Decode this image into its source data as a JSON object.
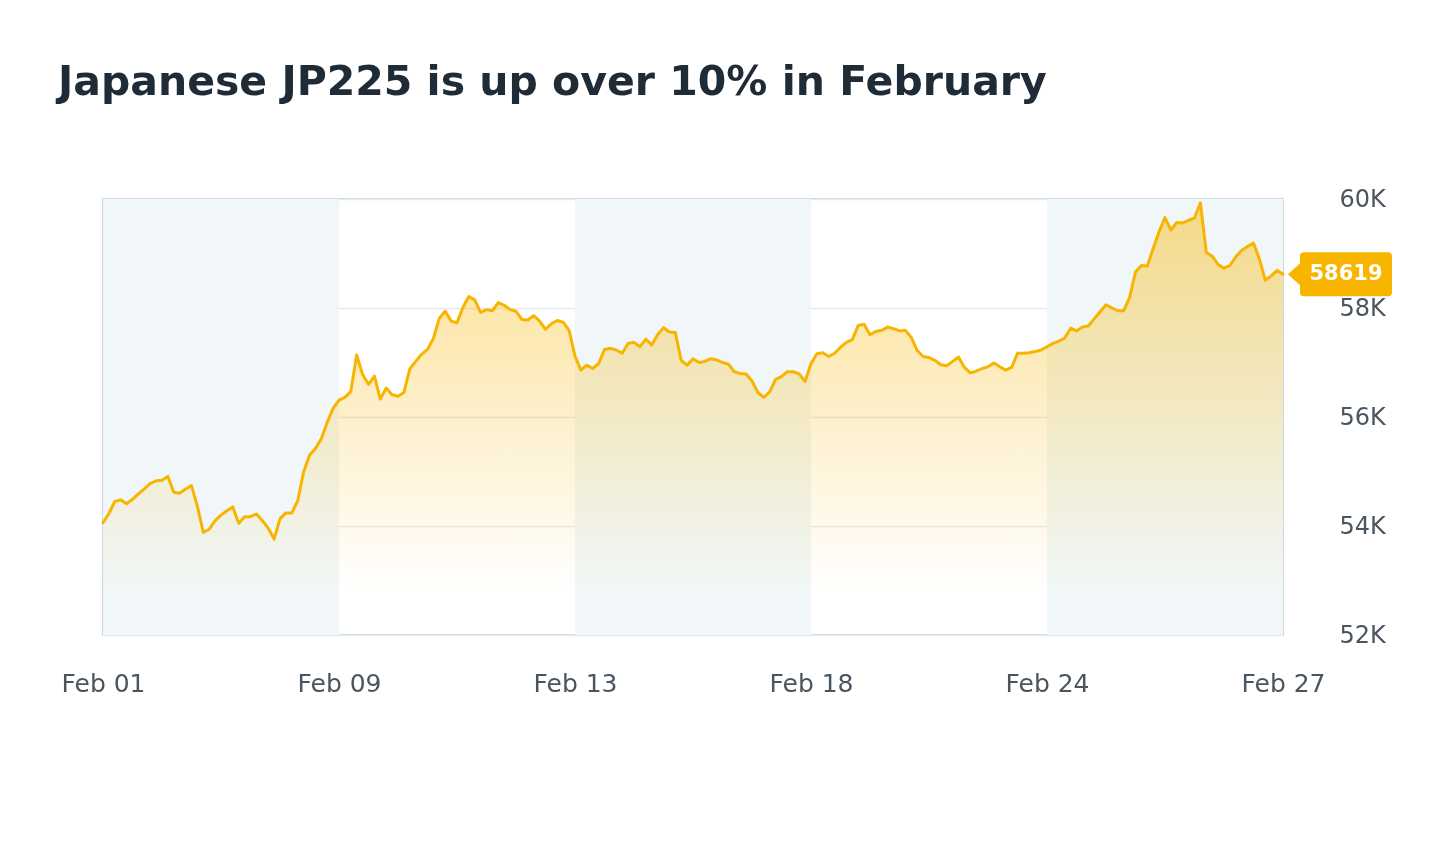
{
  "chart_data": {
    "type": "area",
    "title": "Japanese JP225 is up over 10% in February",
    "categories": [
      "Feb 01",
      null,
      null,
      null,
      null,
      null,
      null,
      null,
      null,
      null,
      null,
      null,
      null,
      null,
      null,
      null,
      null,
      null,
      null,
      null,
      null,
      null,
      null,
      null,
      null,
      null,
      null,
      null,
      null,
      null,
      null,
      null,
      null,
      null,
      null,
      null,
      null,
      null,
      null,
      null,
      "Feb 09",
      null,
      null,
      null,
      null,
      null,
      null,
      null,
      null,
      null,
      null,
      null,
      null,
      null,
      null,
      null,
      null,
      null,
      null,
      null,
      null,
      null,
      null,
      null,
      null,
      null,
      null,
      null,
      null,
      null,
      null,
      null,
      null,
      null,
      null,
      null,
      null,
      null,
      null,
      null,
      "Feb 13",
      null,
      null,
      null,
      null,
      null,
      null,
      null,
      null,
      null,
      null,
      null,
      null,
      null,
      null,
      null,
      null,
      null,
      null,
      null,
      null,
      null,
      null,
      null,
      null,
      null,
      null,
      null,
      null,
      null,
      null,
      null,
      null,
      null,
      null,
      null,
      null,
      null,
      null,
      null,
      "Feb 18",
      null,
      null,
      null,
      null,
      null,
      null,
      null,
      null,
      null,
      null,
      null,
      null,
      null,
      null,
      null,
      null,
      null,
      null,
      null,
      null,
      null,
      null,
      null,
      null,
      null,
      null,
      null,
      null,
      null,
      null,
      null,
      null,
      null,
      null,
      null,
      null,
      null,
      null,
      null,
      "Feb 24",
      null,
      null,
      null,
      null,
      null,
      null,
      null,
      null,
      null,
      null,
      null,
      null,
      null,
      null,
      null,
      null,
      null,
      null,
      null,
      null,
      null,
      null,
      null,
      null,
      null,
      null,
      null,
      null,
      null,
      null,
      null,
      null,
      null,
      null,
      null,
      null,
      null,
      null,
      null,
      "Feb 27"
    ],
    "ylim": [
      52000,
      60000
    ],
    "yticks": [
      {
        "value": 52000,
        "label": "52K"
      },
      {
        "value": 54000,
        "label": "54K"
      },
      {
        "value": 56000,
        "label": "56K"
      },
      {
        "value": 58000,
        "label": "58K"
      },
      {
        "value": 60000,
        "label": "60K"
      }
    ],
    "grid": "y",
    "bands": [
      {
        "axis": "x",
        "from": "Feb 01",
        "to": "Feb 09",
        "color": "#f1f7f8"
      },
      {
        "axis": "x",
        "from": "Feb 13",
        "to": "Feb 18",
        "color": "#f1f7f8"
      },
      {
        "axis": "x",
        "from": "Feb 24",
        "to": "Feb 27",
        "color": "#f1f7f8"
      }
    ],
    "series": [
      {
        "color": "#f7b500",
        "values": [
          54060,
          54230,
          54450,
          54480,
          54410,
          54490,
          54590,
          54680,
          54780,
          54830,
          54840,
          54910,
          54620,
          54600,
          54680,
          54740,
          54360,
          53880,
          53940,
          54100,
          54200,
          54280,
          54350,
          54050,
          54170,
          54170,
          54220,
          54100,
          53960,
          53760,
          54130,
          54240,
          54240,
          54460,
          54990,
          55300,
          55420,
          55600,
          55900,
          56160,
          56310,
          56360,
          56470,
          57140,
          56780,
          56600,
          56750,
          56330,
          56530,
          56410,
          56380,
          56450,
          56880,
          57020,
          57150,
          57240,
          57440,
          57810,
          57940,
          57760,
          57730,
          58010,
          58210,
          58150,
          57920,
          57970,
          57950,
          58100,
          58050,
          57970,
          57940,
          57790,
          57780,
          57860,
          57760,
          57610,
          57710,
          57770,
          57740,
          57590,
          57120,
          56860,
          56950,
          56890,
          56980,
          57240,
          57260,
          57230,
          57170,
          57350,
          57370,
          57290,
          57430,
          57320,
          57510,
          57640,
          57560,
          57550,
          57040,
          56950,
          57070,
          57000,
          57020,
          57070,
          57050,
          57000,
          56970,
          56830,
          56800,
          56790,
          56660,
          56450,
          56360,
          56460,
          56690,
          56740,
          56830,
          56830,
          56790,
          56650,
          56980,
          57160,
          57180,
          57110,
          57170,
          57280,
          57370,
          57420,
          57680,
          57700,
          57510,
          57570,
          57590,
          57650,
          57620,
          57580,
          57590,
          57460,
          57220,
          57110,
          57090,
          57040,
          56960,
          56940,
          57020,
          57100,
          56910,
          56810,
          56840,
          56890,
          56920,
          56990,
          56920,
          56860,
          56910,
          57170,
          57170,
          57180,
          57200,
          57230,
          57290,
          57350,
          57390,
          57450,
          57630,
          57580,
          57650,
          57670,
          57800,
          57930,
          58060,
          58000,
          57950,
          57950,
          58190,
          58660,
          58780,
          58770,
          59090,
          59400,
          59660,
          59430,
          59570,
          59560,
          59610,
          59650,
          59930,
          59020,
          58950,
          58800,
          58730,
          58780,
          58940,
          59060,
          59130,
          59190,
          58900,
          58510,
          58590,
          58690,
          58619
        ],
        "value_labels": [
          null,
          null,
          null,
          null,
          null,
          null,
          null,
          null,
          null,
          null,
          null,
          null,
          null,
          null,
          null,
          null,
          null,
          null,
          null,
          null,
          null,
          null,
          null,
          null,
          null,
          null,
          null,
          null,
          null,
          null,
          null,
          null,
          null,
          null,
          null,
          null,
          null,
          null,
          null,
          null,
          null,
          null,
          null,
          null,
          null,
          null,
          null,
          null,
          null,
          null,
          null,
          null,
          null,
          null,
          null,
          null,
          null,
          null,
          null,
          null,
          null,
          null,
          null,
          null,
          null,
          null,
          null,
          null,
          null,
          null,
          null,
          null,
          null,
          null,
          null,
          null,
          null,
          null,
          null,
          null,
          null,
          null,
          null,
          null,
          null,
          null,
          null,
          null,
          null,
          null,
          null,
          null,
          null,
          null,
          null,
          null,
          null,
          null,
          null,
          null,
          null,
          null,
          null,
          null,
          null,
          null,
          null,
          null,
          null,
          null,
          null,
          null,
          null,
          null,
          null,
          null,
          null,
          null,
          null,
          null,
          null,
          null,
          null,
          null,
          null,
          null,
          null,
          null,
          null,
          null,
          null,
          null,
          null,
          null,
          null,
          null,
          null,
          null,
          null,
          null,
          null,
          null,
          null,
          null,
          null,
          null,
          null,
          null,
          null,
          null,
          null,
          null,
          null,
          null,
          null,
          null,
          null,
          null,
          null,
          null,
          null,
          null,
          null,
          null,
          null,
          null,
          null,
          null,
          null,
          null,
          null,
          null,
          null,
          null,
          null,
          null,
          null,
          null,
          null,
          null,
          null,
          null,
          null,
          null,
          null,
          null,
          null,
          null,
          null,
          null,
          null,
          null,
          null,
          null,
          null,
          null,
          null,
          null,
          null,
          null,
          "58619"
        ]
      }
    ]
  }
}
